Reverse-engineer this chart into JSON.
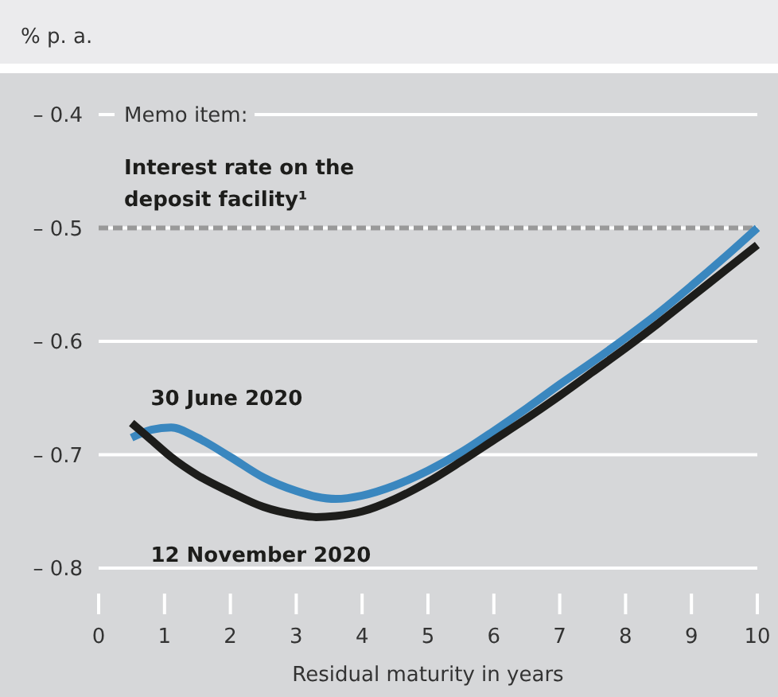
{
  "chart_data": {
    "type": "line",
    "ylabel": "% p. a.",
    "xlabel": "Residual maturity in years",
    "xlim": [
      0,
      10
    ],
    "xticks": [
      0,
      1,
      2,
      3,
      4,
      5,
      6,
      7,
      8,
      9,
      10
    ],
    "ylim": [
      -0.8,
      -0.4
    ],
    "yticks": [
      {
        "value": -0.4,
        "label": "– 0.4"
      },
      {
        "value": -0.5,
        "label": "– 0.5"
      },
      {
        "value": -0.6,
        "label": "– 0.6"
      },
      {
        "value": -0.7,
        "label": "– 0.7"
      },
      {
        "value": -0.8,
        "label": "– 0.8"
      }
    ],
    "grid": "y",
    "marker": "none",
    "line_style": "solid",
    "x": [
      0.5,
      0.8,
      1.1,
      1.5,
      2,
      2.5,
      3,
      3.3,
      3.6,
      4,
      4.5,
      5,
      5.5,
      6,
      6.5,
      7,
      7.5,
      8,
      8.5,
      9,
      9.5,
      10
    ],
    "series": [
      {
        "name": "30 June 2020",
        "color": "#3a87bf",
        "values": [
          -0.685,
          -0.678,
          -0.676,
          -0.685,
          -0.702,
          -0.72,
          -0.732,
          -0.737,
          -0.739,
          -0.736,
          -0.727,
          -0.714,
          -0.698,
          -0.679,
          -0.659,
          -0.638,
          -0.618,
          -0.597,
          -0.575,
          -0.551,
          -0.526,
          -0.5
        ]
      },
      {
        "name": "12 November 2020",
        "color": "#1d1d1b",
        "values": [
          -0.672,
          -0.687,
          -0.702,
          -0.718,
          -0.733,
          -0.746,
          -0.753,
          -0.755,
          -0.754,
          -0.75,
          -0.739,
          -0.724,
          -0.706,
          -0.687,
          -0.668,
          -0.648,
          -0.627,
          -0.606,
          -0.584,
          -0.561,
          -0.538,
          -0.515
        ]
      }
    ],
    "ref_lines": [
      {
        "axis": "y",
        "value": -0.5,
        "label": "Interest rate on the deposit facility¹",
        "color": "#999999",
        "line_style": "dashed"
      }
    ],
    "annotations": [
      "Memo item:"
    ]
  }
}
